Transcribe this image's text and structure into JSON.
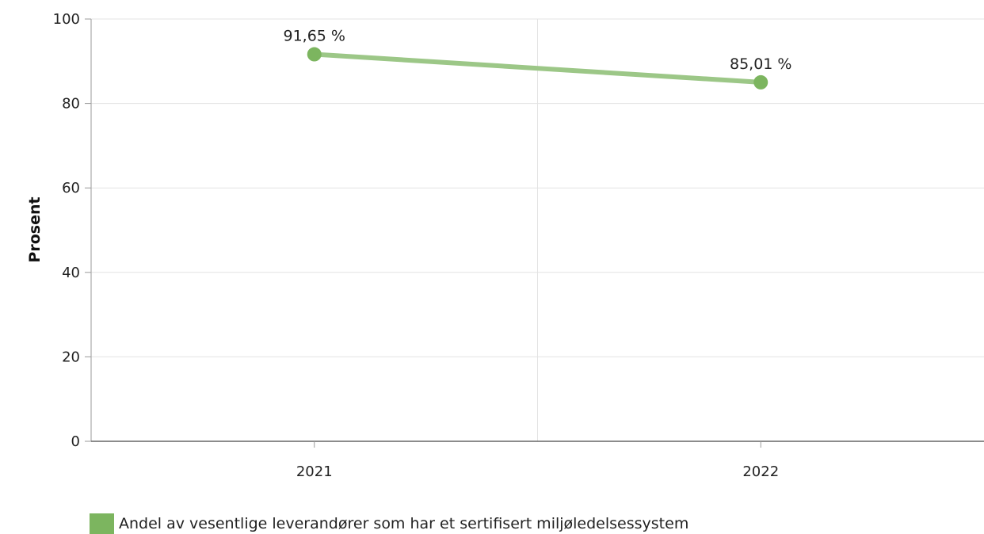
{
  "chart_data": {
    "type": "line",
    "categories": [
      "2021",
      "2022"
    ],
    "series": [
      {
        "name": "Andel av vesentlige leverandører som har et sertifisert miljøledelsessystem",
        "values": [
          91.65,
          85.01
        ],
        "labels": [
          "91,65 %",
          "85,01 %"
        ],
        "color": "#7cb55f"
      }
    ],
    "ylabel": "Prosent",
    "xlabel": "",
    "ylim": [
      0,
      100
    ],
    "yticks": [
      "0",
      "20",
      "40",
      "60",
      "80",
      "100"
    ],
    "grid": true,
    "legend_position": "bottom-left"
  }
}
